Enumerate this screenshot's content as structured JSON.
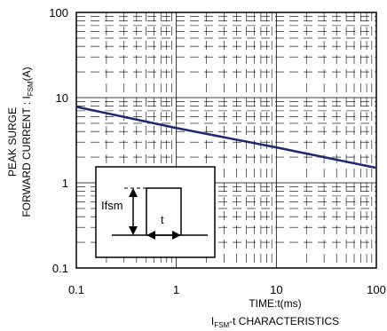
{
  "chart_data": {
    "type": "line",
    "title": "I",
    "title_sub": "FSM",
    "title_rest": "-t CHARACTERISTICS",
    "xlabel": "TIME:t(ms)",
    "ylabel_line1": "PEAK SURGE",
    "ylabel_line2_pre": "FORWARD CURRENT : I",
    "ylabel_line2_sub": "FSM",
    "ylabel_line2_post": "(A)",
    "x_scale": "log",
    "y_scale": "log",
    "xlim": [
      0.1,
      100
    ],
    "ylim": [
      0.1,
      100
    ],
    "x_ticks": [
      "0.1",
      "1",
      "10",
      "100"
    ],
    "y_ticks": [
      "0.1",
      "1",
      "10",
      "100"
    ],
    "grid": true,
    "line_color": "#1c2a6e",
    "series": [
      {
        "x": [
          0.1,
          1,
          10,
          100
        ],
        "y": [
          7.8,
          4.4,
          2.6,
          1.5
        ]
      }
    ],
    "inset": {
      "label_current": "Ifsm",
      "label_time": "t"
    }
  }
}
